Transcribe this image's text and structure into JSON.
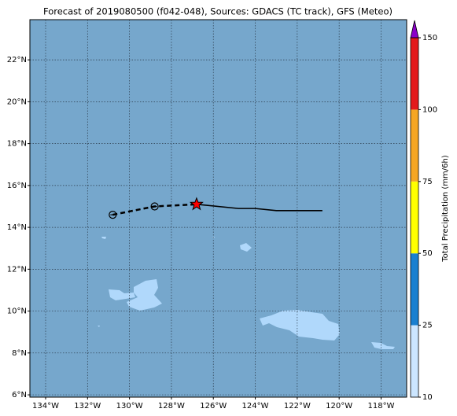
{
  "chart_data": {
    "type": "map",
    "title": "Forecast of 2019080500 (f042-048), Sources: GDACS (TC track), GFS (Meteo)",
    "xlim": [
      -134.75,
      -116.78
    ],
    "ylim": [
      5.89,
      23.92
    ],
    "xticks": [
      {
        "value": -134,
        "label": "134°W"
      },
      {
        "value": -132,
        "label": "132°W"
      },
      {
        "value": -130,
        "label": "130°W"
      },
      {
        "value": -128,
        "label": "128°W"
      },
      {
        "value": -126,
        "label": "126°W"
      },
      {
        "value": -124,
        "label": "124°W"
      },
      {
        "value": -122,
        "label": "122°W"
      },
      {
        "value": -120,
        "label": "120°W"
      },
      {
        "value": -118,
        "label": "118°W"
      }
    ],
    "yticks": [
      {
        "value": 6,
        "label": "6°N"
      },
      {
        "value": 8,
        "label": "8°N"
      },
      {
        "value": 10,
        "label": "10°N"
      },
      {
        "value": 12,
        "label": "12°N"
      },
      {
        "value": 14,
        "label": "14°N"
      },
      {
        "value": 16,
        "label": "16°N"
      },
      {
        "value": 18,
        "label": "18°N"
      },
      {
        "value": 20,
        "label": "20°N"
      },
      {
        "value": 22,
        "label": "22°N"
      }
    ],
    "grid": true,
    "ocean_color": "#76a7cc",
    "track": {
      "past": {
        "lon": [
          -130.8,
          -128.8,
          -126.8
        ],
        "lat": [
          14.6,
          15.0,
          15.1
        ]
      },
      "forecast": {
        "lon": [
          -126.8,
          -124.8,
          -124.0,
          -123.0,
          -120.8
        ],
        "lat": [
          15.1,
          14.9,
          14.9,
          14.8,
          14.8
        ]
      },
      "current": {
        "lon": -126.8,
        "lat": 15.1,
        "color": "#ff0000"
      }
    },
    "colorbar": {
      "label": "Total Precipitation (mm/6h)",
      "ticks": [
        10,
        25,
        50,
        75,
        100,
        150
      ],
      "colors": [
        "#cce6ff",
        "#1a80d0",
        "#ffff00",
        "#f5a623",
        "#e31a1c"
      ],
      "extend_color": "#8a00c8"
    }
  }
}
